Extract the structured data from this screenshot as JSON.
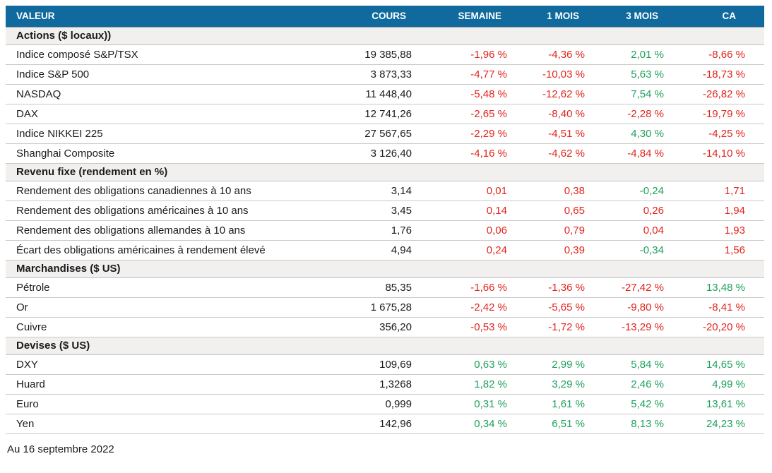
{
  "colors": {
    "header_bg": "#106A9E",
    "header_text": "#FFFFFF",
    "section_bg": "#F2F0EF",
    "negative": "#E1251D",
    "positive": "#1FA15D",
    "text": "#1B1B1B"
  },
  "chart_data": {
    "type": "table",
    "columns": [
      "VALEUR",
      "COURS",
      "SEMAINE",
      "1 MOIS",
      "3 MOIS",
      "CA"
    ],
    "sections": [
      {
        "label": "Actions ($ locaux))",
        "rows": [
          {
            "label": "Indice composé S&P/TSX",
            "cours": "19 385,88",
            "changes": [
              {
                "t": "-1,96 %",
                "c": "neg"
              },
              {
                "t": "-4,36 %",
                "c": "neg"
              },
              {
                "t": "2,01 %",
                "c": "pos"
              },
              {
                "t": "-8,66 %",
                "c": "neg"
              }
            ]
          },
          {
            "label": "Indice S&P 500",
            "cours": "3 873,33",
            "changes": [
              {
                "t": "-4,77 %",
                "c": "neg"
              },
              {
                "t": "-10,03 %",
                "c": "neg"
              },
              {
                "t": "5,63 %",
                "c": "pos"
              },
              {
                "t": "-18,73 %",
                "c": "neg"
              }
            ]
          },
          {
            "label": "NASDAQ",
            "cours": "11 448,40",
            "changes": [
              {
                "t": "-5,48 %",
                "c": "neg"
              },
              {
                "t": "-12,62 %",
                "c": "neg"
              },
              {
                "t": "7,54 %",
                "c": "pos"
              },
              {
                "t": "-26,82 %",
                "c": "neg"
              }
            ]
          },
          {
            "label": "DAX",
            "cours": "12 741,26",
            "changes": [
              {
                "t": "-2,65 %",
                "c": "neg"
              },
              {
                "t": "-8,40 %",
                "c": "neg"
              },
              {
                "t": "-2,28 %",
                "c": "neg"
              },
              {
                "t": "-19,79 %",
                "c": "neg"
              }
            ]
          },
          {
            "label": "Indice NIKKEI 225",
            "cours": "27 567,65",
            "changes": [
              {
                "t": "-2,29 %",
                "c": "neg"
              },
              {
                "t": "-4,51 %",
                "c": "neg"
              },
              {
                "t": "4,30 %",
                "c": "pos"
              },
              {
                "t": "-4,25 %",
                "c": "neg"
              }
            ]
          },
          {
            "label": "Shanghai Composite",
            "cours": "3 126,40",
            "changes": [
              {
                "t": "-4,16 %",
                "c": "neg"
              },
              {
                "t": "-4,62 %",
                "c": "neg"
              },
              {
                "t": "-4,84 %",
                "c": "neg"
              },
              {
                "t": "-14,10 %",
                "c": "neg"
              }
            ]
          }
        ]
      },
      {
        "label": "Revenu fixe (rendement en %)",
        "rows": [
          {
            "label": "Rendement des obligations canadiennes à 10 ans",
            "cours": "3,14",
            "changes": [
              {
                "t": "0,01",
                "c": "neg"
              },
              {
                "t": "0,38",
                "c": "neg"
              },
              {
                "t": "-0,24",
                "c": "pos"
              },
              {
                "t": "1,71",
                "c": "neg"
              }
            ]
          },
          {
            "label": "Rendement des obligations américaines à 10 ans",
            "cours": "3,45",
            "changes": [
              {
                "t": "0,14",
                "c": "neg"
              },
              {
                "t": "0,65",
                "c": "neg"
              },
              {
                "t": "0,26",
                "c": "neg"
              },
              {
                "t": "1,94",
                "c": "neg"
              }
            ]
          },
          {
            "label": "Rendement des obligations allemandes à 10 ans",
            "cours": "1,76",
            "changes": [
              {
                "t": "0,06",
                "c": "neg"
              },
              {
                "t": "0,79",
                "c": "neg"
              },
              {
                "t": "0,04",
                "c": "neg"
              },
              {
                "t": "1,93",
                "c": "neg"
              }
            ]
          },
          {
            "label": "Écart des obligations américaines à rendement élevé",
            "cours": "4,94",
            "changes": [
              {
                "t": "0,24",
                "c": "neg"
              },
              {
                "t": "0,39",
                "c": "neg"
              },
              {
                "t": "-0,34",
                "c": "pos"
              },
              {
                "t": "1,56",
                "c": "neg"
              }
            ]
          }
        ]
      },
      {
        "label": "Marchandises ($ US)",
        "rows": [
          {
            "label": "Pétrole",
            "cours": "85,35",
            "changes": [
              {
                "t": "-1,66 %",
                "c": "neg"
              },
              {
                "t": "-1,36 %",
                "c": "neg"
              },
              {
                "t": "-27,42 %",
                "c": "neg"
              },
              {
                "t": "13,48 %",
                "c": "pos"
              }
            ]
          },
          {
            "label": "Or",
            "cours": "1 675,28",
            "changes": [
              {
                "t": "-2,42 %",
                "c": "neg"
              },
              {
                "t": "-5,65 %",
                "c": "neg"
              },
              {
                "t": "-9,80 %",
                "c": "neg"
              },
              {
                "t": "-8,41 %",
                "c": "neg"
              }
            ]
          },
          {
            "label": "Cuivre",
            "cours": "356,20",
            "changes": [
              {
                "t": "-0,53 %",
                "c": "neg"
              },
              {
                "t": "-1,72 %",
                "c": "neg"
              },
              {
                "t": "-13,29 %",
                "c": "neg"
              },
              {
                "t": "-20,20 %",
                "c": "neg"
              }
            ]
          }
        ]
      },
      {
        "label": "Devises ($ US)",
        "rows": [
          {
            "label": "DXY",
            "cours": "109,69",
            "changes": [
              {
                "t": "0,63 %",
                "c": "pos"
              },
              {
                "t": "2,99 %",
                "c": "pos"
              },
              {
                "t": "5,84 %",
                "c": "pos"
              },
              {
                "t": "14,65 %",
                "c": "pos"
              }
            ]
          },
          {
            "label": "Huard",
            "cours": "1,3268",
            "changes": [
              {
                "t": "1,82 %",
                "c": "pos"
              },
              {
                "t": "3,29 %",
                "c": "pos"
              },
              {
                "t": "2,46 %",
                "c": "pos"
              },
              {
                "t": "4,99 %",
                "c": "pos"
              }
            ]
          },
          {
            "label": "Euro",
            "cours": "0,999",
            "changes": [
              {
                "t": "0,31 %",
                "c": "pos"
              },
              {
                "t": "1,61 %",
                "c": "pos"
              },
              {
                "t": "5,42 %",
                "c": "pos"
              },
              {
                "t": "13,61 %",
                "c": "pos"
              }
            ]
          },
          {
            "label": "Yen",
            "cours": "142,96",
            "changes": [
              {
                "t": "0,34 %",
                "c": "pos"
              },
              {
                "t": "6,51 %",
                "c": "pos"
              },
              {
                "t": "8,13 %",
                "c": "pos"
              },
              {
                "t": "24,23 %",
                "c": "pos"
              }
            ]
          }
        ]
      }
    ]
  },
  "footer": {
    "as_of": "Au 16 septembre 2022"
  }
}
